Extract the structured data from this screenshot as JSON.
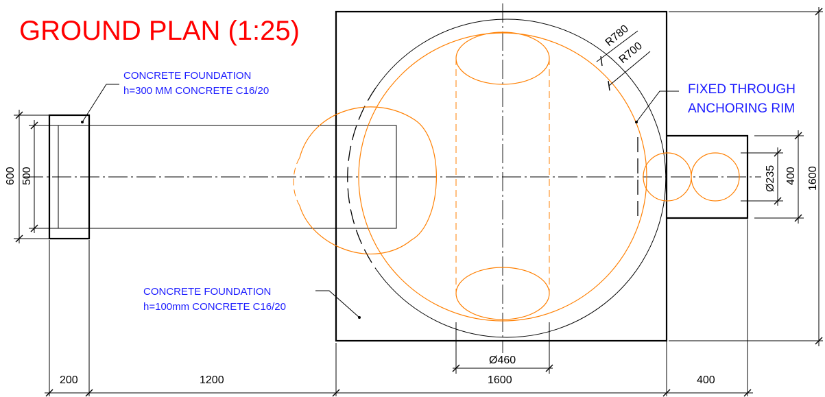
{
  "title": "GROUND PLAN (1:25)",
  "notes": {
    "foundation_ramp_line1": "CONCRETE FOUNDATION",
    "foundation_ramp_line2": "h=300 MM CONCRETE C16/20",
    "foundation_base_line1": "CONCRETE FOUNDATION",
    "foundation_base_line2": "h=100mm CONCRETE C16/20",
    "anchoring_line1": "FIXED THROUGH",
    "anchoring_line2": "ANCHORING RIM"
  },
  "dimensions": {
    "width_block": "200",
    "length_ramp": "1200",
    "width_base": "1600",
    "width_extension": "400",
    "height_base": "1600",
    "height_block_outer": "600",
    "height_block_inner": "500",
    "height_extension": "400",
    "diameter_outlet": "Ø235",
    "diameter_column": "Ø460",
    "radius_outer": "R780",
    "radius_inner": "R700"
  },
  "colors": {
    "title": "#ff0000",
    "annotation": "#1c1cff",
    "orange_geometry": "#ff7f00",
    "linework": "#000000"
  }
}
